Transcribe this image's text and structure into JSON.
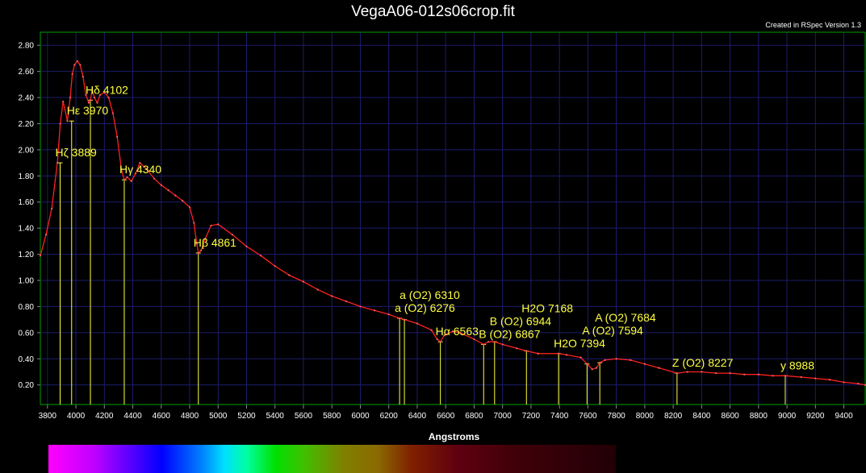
{
  "window": {
    "title": "VegaA06-012s06crop.fit",
    "credit": "Created in RSpec Version 1.3"
  },
  "chart_data": {
    "type": "line",
    "xlabel": "Angstroms",
    "ylabel": "",
    "xlim": [
      3750,
      9550
    ],
    "ylim": [
      0.05,
      2.9
    ],
    "grid": true,
    "colors": {
      "line": "#ff2020",
      "marker": "#ffff40",
      "grid": "#1c1c6e",
      "axes": "#00a000",
      "label": "#ffff40"
    },
    "x_ticks": [
      3800,
      4000,
      4200,
      4400,
      4600,
      4800,
      5000,
      5200,
      5400,
      5600,
      5800,
      6000,
      6200,
      6400,
      6600,
      6800,
      7000,
      7200,
      7400,
      7600,
      7800,
      8000,
      8200,
      8400,
      8600,
      8800,
      9000,
      9200,
      9400
    ],
    "y_ticks": [
      "0.20",
      "0.40",
      "0.60",
      "0.80",
      "1.00",
      "1.20",
      "1.40",
      "1.60",
      "1.80",
      "2.00",
      "2.20",
      "2.40",
      "2.60",
      "2.80"
    ],
    "series": [
      {
        "x": [
          3750,
          3790,
          3830,
          3870,
          3890,
          3910,
          3940,
          3960,
          3975,
          3990,
          4010,
          4030,
          4050,
          4070,
          4090,
          4102,
          4115,
          4130,
          4150,
          4170,
          4200,
          4230,
          4260,
          4290,
          4320,
          4340,
          4360,
          4390,
          4420,
          4450,
          4500,
          4550,
          4600,
          4650,
          4700,
          4750,
          4800,
          4830,
          4850,
          4861,
          4880,
          4910,
          4950,
          5000,
          5100,
          5200,
          5300,
          5400,
          5500,
          5600,
          5700,
          5800,
          5900,
          6000,
          6100,
          6200,
          6276,
          6310,
          6400,
          6500,
          6540,
          6563,
          6590,
          6650,
          6700,
          6800,
          6867,
          6900,
          6944,
          7000,
          7100,
          7168,
          7250,
          7394,
          7450,
          7550,
          7594,
          7630,
          7660,
          7684,
          7720,
          7800,
          7900,
          8000,
          8100,
          8227,
          8300,
          8400,
          8500,
          8600,
          8700,
          8800,
          8900,
          8988,
          9100,
          9200,
          9300,
          9400,
          9500,
          9550
        ],
        "y": [
          1.19,
          1.35,
          1.55,
          1.9,
          2.2,
          2.37,
          2.22,
          2.4,
          2.58,
          2.65,
          2.68,
          2.65,
          2.56,
          2.42,
          2.36,
          2.38,
          2.46,
          2.4,
          2.36,
          2.42,
          2.44,
          2.4,
          2.28,
          2.1,
          1.85,
          1.77,
          1.79,
          1.76,
          1.82,
          1.9,
          1.85,
          1.78,
          1.73,
          1.69,
          1.65,
          1.61,
          1.56,
          1.44,
          1.28,
          1.21,
          1.23,
          1.32,
          1.42,
          1.43,
          1.35,
          1.26,
          1.19,
          1.11,
          1.04,
          0.99,
          0.93,
          0.88,
          0.84,
          0.8,
          0.77,
          0.74,
          0.71,
          0.7,
          0.67,
          0.62,
          0.55,
          0.53,
          0.58,
          0.61,
          0.6,
          0.55,
          0.51,
          0.53,
          0.53,
          0.51,
          0.48,
          0.46,
          0.44,
          0.44,
          0.43,
          0.41,
          0.36,
          0.32,
          0.33,
          0.37,
          0.39,
          0.4,
          0.39,
          0.36,
          0.33,
          0.29,
          0.3,
          0.3,
          0.29,
          0.29,
          0.28,
          0.28,
          0.27,
          0.27,
          0.26,
          0.25,
          0.24,
          0.22,
          0.21,
          0.2
        ]
      }
    ],
    "annotations": [
      {
        "label": "Hζ 3889",
        "x": 3889,
        "y": 1.9
      },
      {
        "label": "Hε 3970",
        "x": 3970,
        "y": 2.22
      },
      {
        "label": "Hδ 4102",
        "x": 4102,
        "y": 2.38
      },
      {
        "label": "Hγ 4340",
        "x": 4340,
        "y": 1.77
      },
      {
        "label": "Hβ 4861",
        "x": 4861,
        "y": 1.21
      },
      {
        "label": "a (O2) 6276",
        "x": 6276,
        "y": 0.71
      },
      {
        "label": "a (O2) 6310",
        "x": 6310,
        "y": 0.7
      },
      {
        "label": "Hα 6563",
        "x": 6563,
        "y": 0.53
      },
      {
        "label": "B (O2) 6867",
        "x": 6867,
        "y": 0.51
      },
      {
        "label": "B (O2) 6944",
        "x": 6944,
        "y": 0.53
      },
      {
        "label": "H2O 7168",
        "x": 7168,
        "y": 0.46
      },
      {
        "label": "H2O 7394",
        "x": 7394,
        "y": 0.44
      },
      {
        "label": "A (O2) 7594",
        "x": 7594,
        "y": 0.36
      },
      {
        "label": "A (O2) 7684",
        "x": 7684,
        "y": 0.37
      },
      {
        "label": "Z (O2) 8227",
        "x": 8227,
        "y": 0.29
      },
      {
        "label": "y 8988",
        "x": 8988,
        "y": 0.27
      }
    ]
  }
}
